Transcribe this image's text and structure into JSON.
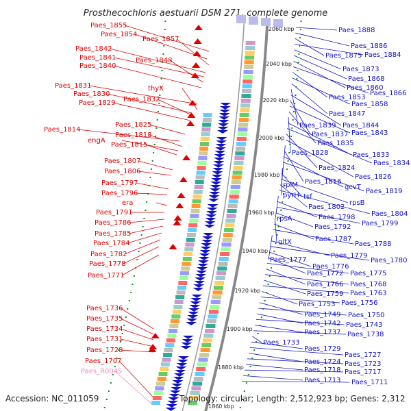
{
  "title": "Prosthecochloris aestuarii DSM 271, complete genome",
  "accession": "Accession: NC_011059",
  "summary": "Topology: circular; Length: 2,512,923 bp; Genes: 2,312",
  "colors": {
    "forward": "#dd0000",
    "reverse": "#1111cc",
    "rna": "#ee88bb",
    "backbone": "#888888",
    "gc_dots": "#118811"
  },
  "kbp_marks": [
    "2060 kbp",
    "2040 kbp",
    "2020 kbp",
    "2000 kbp",
    "1980 kbp",
    "1960 kbp",
    "1940 kbp",
    "1920 kbp",
    "1900 kbp",
    "1880 kbp",
    "1860 kbp"
  ],
  "left_labels": [
    {
      "text": "Paes_1855",
      "kind": "forward"
    },
    {
      "text": "Paes_1854",
      "kind": "forward"
    },
    {
      "text": "Paes_1857",
      "kind": "forward"
    },
    {
      "text": "Paes_1842",
      "kind": "forward"
    },
    {
      "text": "Paes_1841",
      "kind": "forward"
    },
    {
      "text": "Paes_1848",
      "kind": "forward"
    },
    {
      "text": "Paes_1840",
      "kind": "forward"
    },
    {
      "text": "Paes_1831",
      "kind": "forward"
    },
    {
      "text": "thyX",
      "kind": "forward"
    },
    {
      "text": "Paes_1830",
      "kind": "forward"
    },
    {
      "text": "Paes_1832",
      "kind": "forward"
    },
    {
      "text": "Paes_1829",
      "kind": "forward"
    },
    {
      "text": "Paes_1825",
      "kind": "forward"
    },
    {
      "text": "Paes_1814",
      "kind": "forward"
    },
    {
      "text": "Paes_1818",
      "kind": "forward"
    },
    {
      "text": "engA",
      "kind": "forward"
    },
    {
      "text": "Paes_1815",
      "kind": "forward"
    },
    {
      "text": "Paes_1807",
      "kind": "forward"
    },
    {
      "text": "Paes_1806",
      "kind": "forward"
    },
    {
      "text": "Paes_1797",
      "kind": "forward"
    },
    {
      "text": "Paes_1796",
      "kind": "forward"
    },
    {
      "text": "era",
      "kind": "forward"
    },
    {
      "text": "Paes_1791",
      "kind": "forward"
    },
    {
      "text": "Paes_1786",
      "kind": "forward"
    },
    {
      "text": "Paes_1785",
      "kind": "forward"
    },
    {
      "text": "Paes_1784",
      "kind": "forward"
    },
    {
      "text": "Paes_1782",
      "kind": "forward"
    },
    {
      "text": "Paes_1778",
      "kind": "forward"
    },
    {
      "text": "Paes_1771",
      "kind": "forward"
    },
    {
      "text": "Paes_1736",
      "kind": "forward"
    },
    {
      "text": "Paes_1735",
      "kind": "forward"
    },
    {
      "text": "Paes_1734",
      "kind": "forward"
    },
    {
      "text": "Paes_1731",
      "kind": "forward"
    },
    {
      "text": "Paes_1728",
      "kind": "forward"
    },
    {
      "text": "Paes_1707",
      "kind": "forward"
    },
    {
      "text": "Paes_R0045",
      "kind": "rna"
    }
  ],
  "right_labels": [
    {
      "text": "Paes_1888"
    },
    {
      "text": "Paes_1886"
    },
    {
      "text": "Paes_1875"
    },
    {
      "text": "Paes_1884"
    },
    {
      "text": "Paes_1873"
    },
    {
      "text": "Paes_1868"
    },
    {
      "text": "Paes_1860"
    },
    {
      "text": "Paes_1866"
    },
    {
      "text": "Paes_1853"
    },
    {
      "text": "Paes_1858"
    },
    {
      "text": "Paes_1847"
    },
    {
      "text": "Paes_1839"
    },
    {
      "text": "Paes_1844"
    },
    {
      "text": "Paes_1837"
    },
    {
      "text": "Paes_1843"
    },
    {
      "text": "Paes_1835"
    },
    {
      "text": "Paes_1828"
    },
    {
      "text": "Paes_1833"
    },
    {
      "text": "Paes_1834"
    },
    {
      "text": "Paes_1824"
    },
    {
      "text": "Paes_1826"
    },
    {
      "text": "rplM"
    },
    {
      "text": "Paes_1816"
    },
    {
      "text": "gcvT"
    },
    {
      "text": "Paes_1819"
    },
    {
      "text": "pyrH"
    },
    {
      "text": "tsf"
    },
    {
      "text": "rpsB"
    },
    {
      "text": "Paes_1802"
    },
    {
      "text": "Paes_1804"
    },
    {
      "text": "rpsA"
    },
    {
      "text": "Paes_1798"
    },
    {
      "text": "Paes_1799"
    },
    {
      "text": "Paes_1792"
    },
    {
      "text": "gltX"
    },
    {
      "text": "Paes_1787"
    },
    {
      "text": "Paes_1788"
    },
    {
      "text": "Paes_1777"
    },
    {
      "text": "Paes_1779"
    },
    {
      "text": "Paes_1780"
    },
    {
      "text": "Paes_1776"
    },
    {
      "text": "Paes_1772"
    },
    {
      "text": "Paes_1775"
    },
    {
      "text": "Paes_1766"
    },
    {
      "text": "Paes_1768"
    },
    {
      "text": "Paes_1759"
    },
    {
      "text": "Paes_1763"
    },
    {
      "text": "Paes_1753"
    },
    {
      "text": "Paes_1756"
    },
    {
      "text": "Paes_1749"
    },
    {
      "text": "Paes_1750"
    },
    {
      "text": "Paes_1742"
    },
    {
      "text": "Paes_1743"
    },
    {
      "text": "Paes_1737"
    },
    {
      "text": "Paes_1738"
    },
    {
      "text": "Paes_1733"
    },
    {
      "text": "Paes_1729"
    },
    {
      "text": "Paes_1727"
    },
    {
      "text": "Paes_1724"
    },
    {
      "text": "Paes_1723"
    },
    {
      "text": "Paes_1718"
    },
    {
      "text": "Paes_1717"
    },
    {
      "text": "Paes_1713"
    },
    {
      "text": "Paes_1711"
    }
  ]
}
